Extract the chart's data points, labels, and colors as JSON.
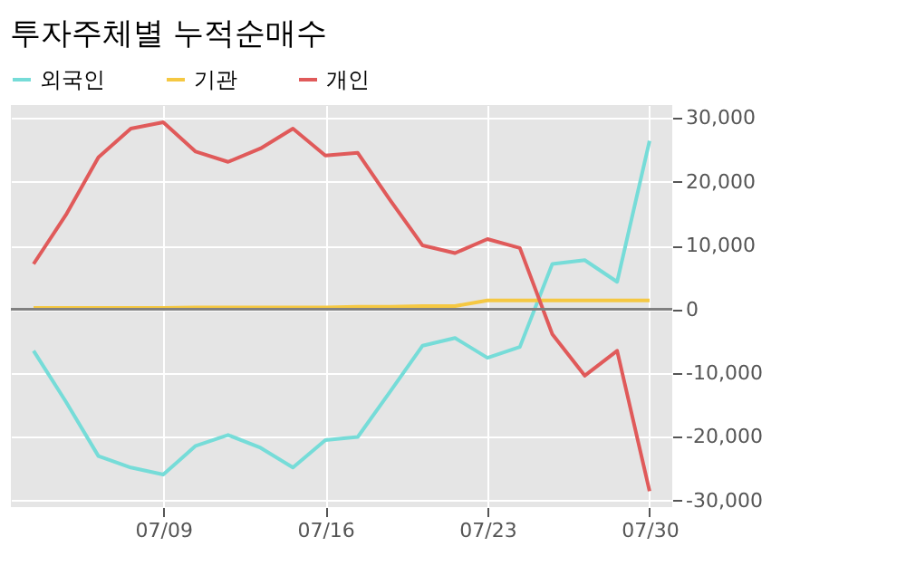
{
  "chart_data": {
    "type": "line",
    "title": "투자주체별 누적순매수",
    "categories": [
      null,
      null,
      null,
      null,
      "07/09",
      null,
      null,
      null,
      null,
      "07/16",
      null,
      null,
      null,
      null,
      "07/23",
      null,
      null,
      null,
      null,
      "07/30"
    ],
    "series": [
      {
        "name": "외국인",
        "color": "#76dcd8",
        "values": [
          -6500,
          -14500,
          -23000,
          -24800,
          -25900,
          -21400,
          -19700,
          -21700,
          -24800,
          -20500,
          -20000,
          -12900,
          -5700,
          -4500,
          -7600,
          -5900,
          7100,
          7700,
          4300,
          26400
        ]
      },
      {
        "name": "기관",
        "color": "#f5c842",
        "values": [
          200,
          200,
          200,
          200,
          200,
          300,
          300,
          300,
          300,
          300,
          400,
          400,
          500,
          500,
          1400,
          1400,
          1400,
          1400,
          1400,
          1400
        ]
      },
      {
        "name": "개인",
        "color": "#e05a5a",
        "values": [
          7100,
          14800,
          23800,
          28300,
          29300,
          24700,
          23100,
          25200,
          28300,
          24100,
          24500,
          17100,
          10000,
          8800,
          11000,
          9600,
          -3900,
          -10400,
          -6500,
          -28500
        ]
      }
    ],
    "ylim": [
      -31000,
      32000
    ],
    "yticks": [
      {
        "value": -30000,
        "label": "-30,000"
      },
      {
        "value": -20000,
        "label": "-20,000"
      },
      {
        "value": -10000,
        "label": "-10,000"
      },
      0,
      {
        "value": 10000,
        "label": "10,000"
      },
      {
        "value": 20000,
        "label": "20,000"
      },
      {
        "value": 30000,
        "label": "30,000"
      }
    ],
    "ref_lines": [
      {
        "axis": "y",
        "value": 0,
        "color": "#808080"
      }
    ],
    "grid": true,
    "legend": "top",
    "marker": "none",
    "line_style": "solid"
  }
}
